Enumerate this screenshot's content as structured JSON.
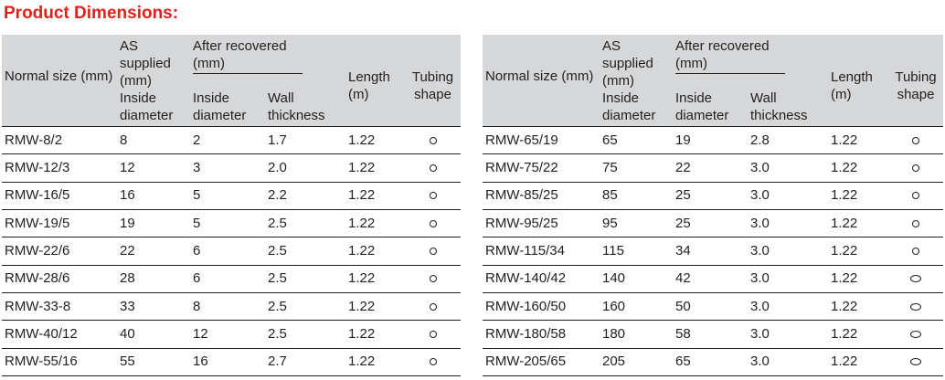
{
  "title": "Product Dimensions:",
  "headers": {
    "normal_size": "Normal size (mm)",
    "as_supplied": "AS supplied (mm)",
    "after_recovered": "After recovered (mm)",
    "length": "Length (m)",
    "tubing_shape": "Tubing shape",
    "inside_diameter_1": "Inside diameter",
    "inside_diameter_2": "Inside diameter",
    "wall_thickness": "Wall thickness"
  },
  "left_rows": [
    {
      "size": "RMW-8/2",
      "supplied_id": "8",
      "recovered_id": "2",
      "wall": "1.7",
      "length": "1.22",
      "shape": "round-small-icon"
    },
    {
      "size": "RMW-12/3",
      "supplied_id": "12",
      "recovered_id": "3",
      "wall": "2.0",
      "length": "1.22",
      "shape": "round-small-icon"
    },
    {
      "size": "RMW-16/5",
      "supplied_id": "16",
      "recovered_id": "5",
      "wall": "2.2",
      "length": "1.22",
      "shape": "round-small-icon"
    },
    {
      "size": "RMW-19/5",
      "supplied_id": "19",
      "recovered_id": "5",
      "wall": "2.5",
      "length": "1.22",
      "shape": "round-small-icon"
    },
    {
      "size": "RMW-22/6",
      "supplied_id": "22",
      "recovered_id": "6",
      "wall": "2.5",
      "length": "1.22",
      "shape": "round-small-icon"
    },
    {
      "size": "RMW-28/6",
      "supplied_id": "28",
      "recovered_id": "6",
      "wall": "2.5",
      "length": "1.22",
      "shape": "round-small-icon"
    },
    {
      "size": "RMW-33-8",
      "supplied_id": "33",
      "recovered_id": "8",
      "wall": "2.5",
      "length": "1.22",
      "shape": "round-small-icon"
    },
    {
      "size": "RMW-40/12",
      "supplied_id": "40",
      "recovered_id": "12",
      "wall": "2.5",
      "length": "1.22",
      "shape": "round-small-icon"
    },
    {
      "size": "RMW-55/16",
      "supplied_id": "55",
      "recovered_id": "16",
      "wall": "2.7",
      "length": "1.22",
      "shape": "round-small-icon"
    }
  ],
  "right_rows": [
    {
      "size": "RMW-65/19",
      "supplied_id": "65",
      "recovered_id": "19",
      "wall": "2.8",
      "length": "1.22",
      "shape": "round-small-icon"
    },
    {
      "size": "RMW-75/22",
      "supplied_id": "75",
      "recovered_id": "22",
      "wall": "3.0",
      "length": "1.22",
      "shape": "round-small-icon"
    },
    {
      "size": "RMW-85/25",
      "supplied_id": "85",
      "recovered_id": "25",
      "wall": "3.0",
      "length": "1.22",
      "shape": "round-small-icon"
    },
    {
      "size": "RMW-95/25",
      "supplied_id": "95",
      "recovered_id": "25",
      "wall": "3.0",
      "length": "1.22",
      "shape": "round-small-icon"
    },
    {
      "size": "RMW-115/34",
      "supplied_id": "115",
      "recovered_id": "34",
      "wall": "3.0",
      "length": "1.22",
      "shape": "round-small-icon"
    },
    {
      "size": "RMW-140/42",
      "supplied_id": "140",
      "recovered_id": "42",
      "wall": "3.0",
      "length": "1.22",
      "shape": "oval-icon"
    },
    {
      "size": "RMW-160/50",
      "supplied_id": "160",
      "recovered_id": "50",
      "wall": "3.0",
      "length": "1.22",
      "shape": "oval-icon"
    },
    {
      "size": "RMW-180/58",
      "supplied_id": "180",
      "recovered_id": "58",
      "wall": "3.0",
      "length": "1.22",
      "shape": "oval-icon"
    },
    {
      "size": "RMW-205/65",
      "supplied_id": "205",
      "recovered_id": "65",
      "wall": "3.0",
      "length": "1.22",
      "shape": "oval-icon"
    }
  ],
  "colors": {
    "title": "#e2211c",
    "header_bg": "#d6d7d9",
    "text": "#231f20"
  }
}
